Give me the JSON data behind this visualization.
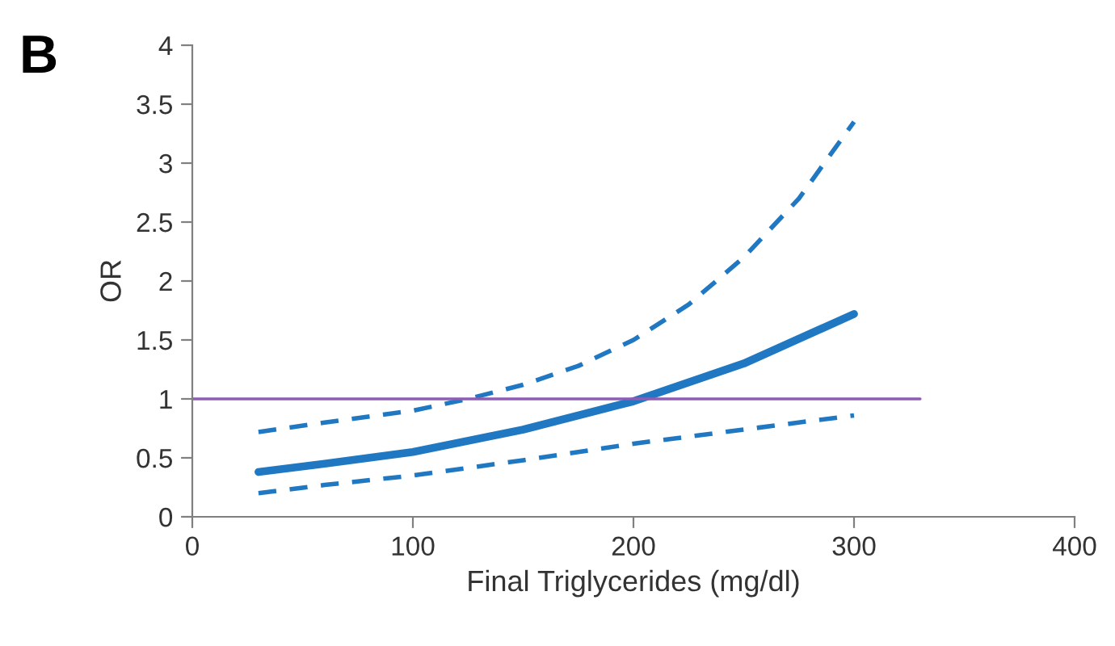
{
  "chart_data": {
    "type": "line",
    "xlabel": "Final Triglycerides (mg/dl)",
    "ylabel": "OR",
    "annotations": [
      "B"
    ],
    "xlim": [
      0,
      400
    ],
    "xticks": [
      0,
      100,
      200,
      300,
      400
    ],
    "ylim": [
      0,
      4
    ],
    "yticks": [
      0,
      0.5,
      1,
      1.5,
      2,
      2.5,
      3,
      3.5,
      4
    ],
    "grid": false,
    "legend": false,
    "marker": "none",
    "series": [
      {
        "color": "#1f78c1",
        "line_style": "dashed",
        "x": [
          30,
          60,
          100,
          125,
          150,
          175,
          200,
          225,
          250,
          275,
          300
        ],
        "values": [
          0.72,
          0.8,
          0.9,
          1.0,
          1.12,
          1.28,
          1.5,
          1.8,
          2.2,
          2.7,
          3.35
        ]
      },
      {
        "color": "#1f78c1",
        "line_style": "solid",
        "x": [
          30,
          60,
          100,
          150,
          200,
          250,
          300
        ],
        "values": [
          0.38,
          0.45,
          0.55,
          0.74,
          0.98,
          1.3,
          1.72
        ]
      },
      {
        "color": "#1f78c1",
        "line_style": "dashed",
        "x": [
          30,
          60,
          100,
          150,
          200,
          250,
          300
        ],
        "values": [
          0.2,
          0.27,
          0.35,
          0.48,
          0.62,
          0.74,
          0.86
        ]
      },
      {
        "color": "#8e5cb5",
        "line_style": "solid",
        "x": [
          0,
          330
        ],
        "values": [
          1,
          1
        ]
      }
    ]
  }
}
